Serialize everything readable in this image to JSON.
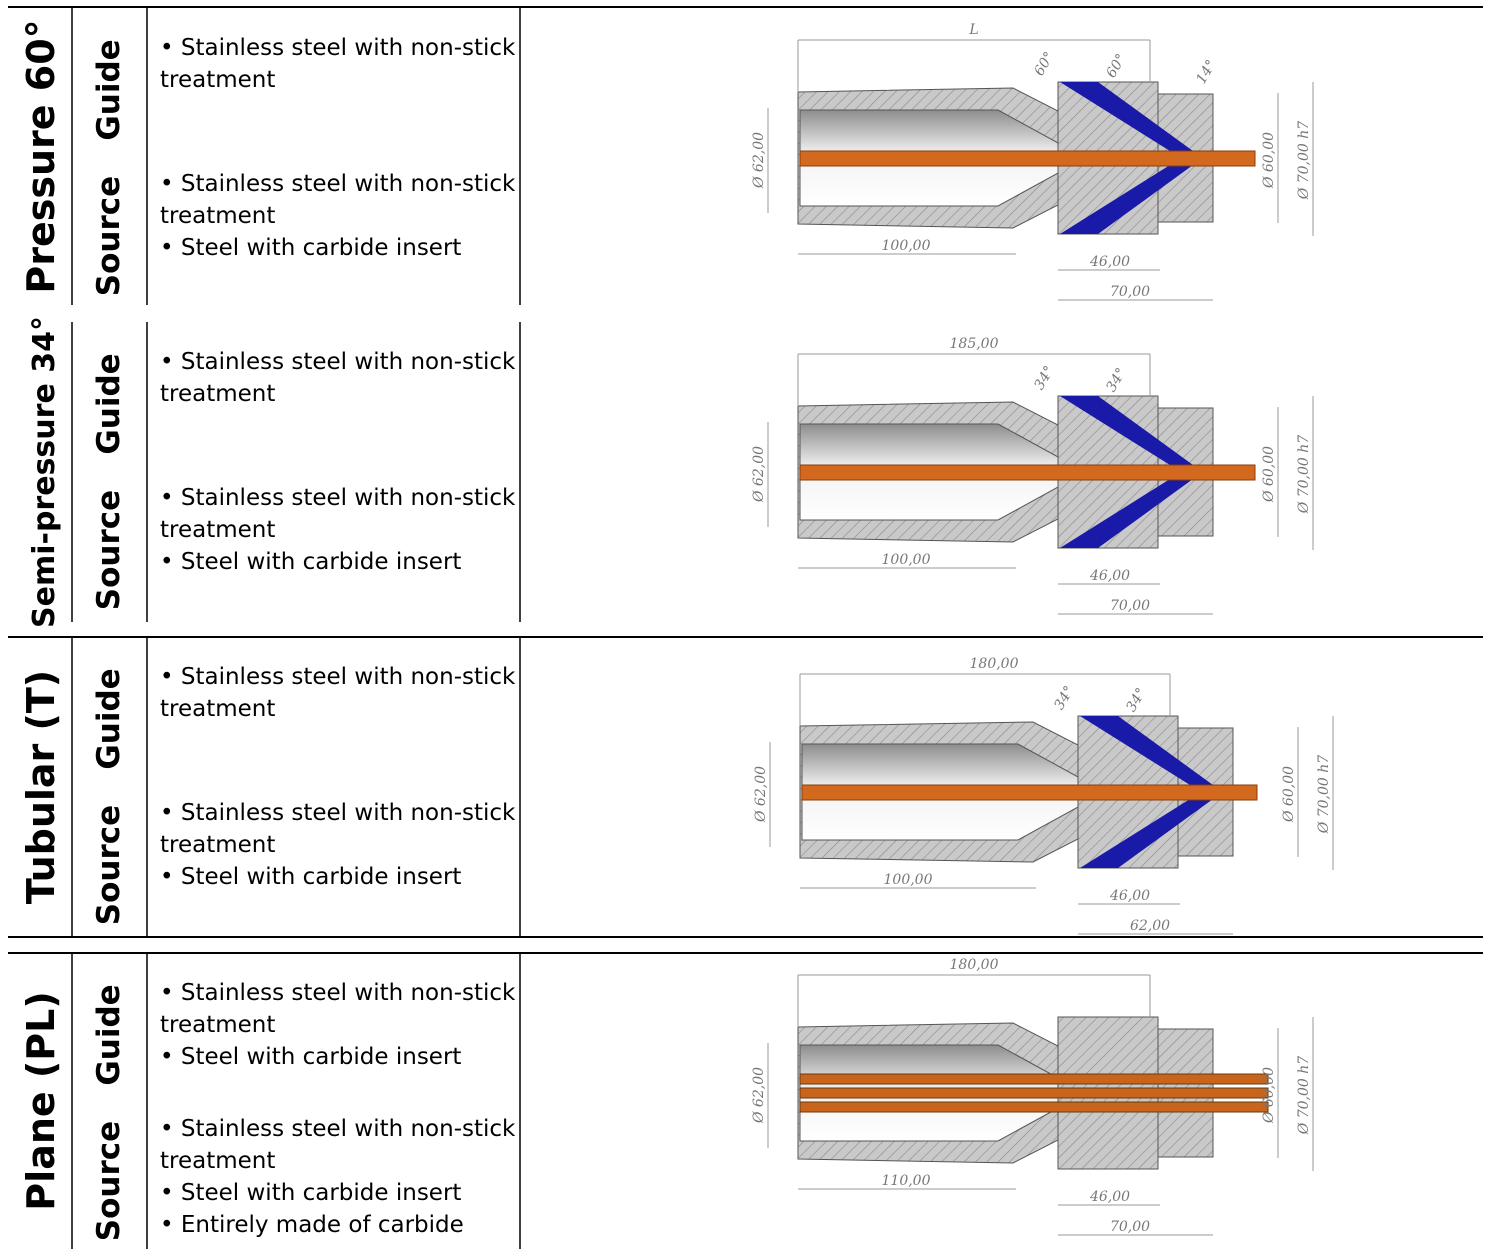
{
  "rows": [
    {
      "title": "Pressure 60°",
      "guide": {
        "label": "Guide",
        "items": [
          "• Stainless steel with non-stick treatment"
        ]
      },
      "source": {
        "label": "Source",
        "items": [
          "• Stainless steel with non-stick treatment",
          "• Steel with carbide insert"
        ]
      },
      "drawing": {
        "length": "L",
        "angles": [
          "60°",
          "60°",
          "14°"
        ],
        "dia_left": "Ø 62,00",
        "len_left": "100,00",
        "len_mid": "46,00",
        "len_total": "70,00",
        "dia_in": "Ø 60,00",
        "dia_out": "Ø 70,00 h7"
      }
    },
    {
      "title": "Semi-pressure 34°",
      "guide": {
        "label": "Guide",
        "items": [
          "• Stainless steel with non-stick treatment"
        ]
      },
      "source": {
        "label": "Source",
        "items": [
          "• Stainless steel with non-stick treatment",
          "• Steel with carbide insert"
        ]
      },
      "drawing": {
        "length": "185,00",
        "angles": [
          "34°",
          "34°"
        ],
        "dia_left": "Ø 62,00",
        "len_left": "100,00",
        "len_mid": "46,00",
        "len_total": "70,00",
        "dia_in": "Ø 60,00",
        "dia_out": "Ø 70,00 h7"
      }
    },
    {
      "title": "Tubular (T)",
      "guide": {
        "label": "Guide",
        "items": [
          "• Stainless steel with non-stick treatment"
        ]
      },
      "source": {
        "label": "Source",
        "items": [
          "• Stainless steel with non-stick treatment",
          "• Steel with carbide insert"
        ]
      },
      "drawing": {
        "length": "180,00",
        "angles": [
          "34°",
          "34°"
        ],
        "dia_left": "Ø 62,00",
        "len_left": "100,00",
        "len_mid": "46,00",
        "len_total": "62,00",
        "dia_in": "Ø 60,00",
        "dia_out": "Ø 70,00 h7"
      }
    },
    {
      "title": "Plane (PL)",
      "guide": {
        "label": "Guide",
        "items": [
          "• Stainless steel with non-stick treatment",
          "• Steel with carbide insert"
        ]
      },
      "source": {
        "label": "Source",
        "items": [
          "• Stainless steel with non-stick treatment",
          "• Steel with carbide insert",
          "• Entirely made of carbide"
        ]
      },
      "drawing": {
        "length": "180,00",
        "dia_left": "Ø 62,00",
        "len_left": "110,00",
        "len_mid": "46,00",
        "len_total": "70,00",
        "dia_in": "Ø 60,00",
        "dia_out": "Ø 70,00 h7"
      }
    }
  ]
}
